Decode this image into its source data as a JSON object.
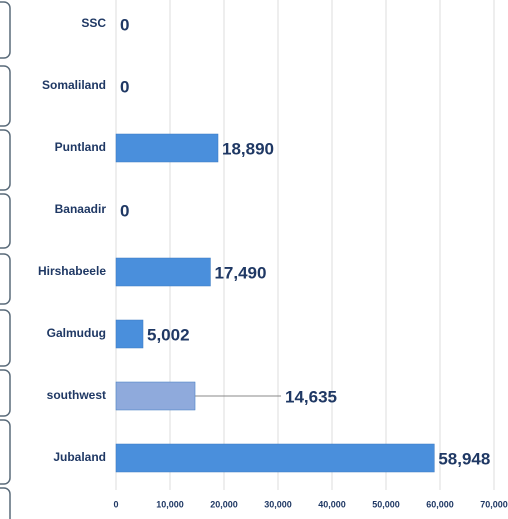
{
  "chart_data": {
    "type": "bar",
    "orientation": "horizontal",
    "categories": [
      "SSC",
      "Somaliland",
      "Puntland",
      "Banaadir",
      "Hirshabeele",
      "Galmudug",
      "southwest",
      "Jubaland"
    ],
    "values": [
      0,
      0,
      18890,
      0,
      17490,
      5002,
      14635,
      58948
    ],
    "value_labels": [
      "0",
      "0",
      "18,890",
      "0",
      "17,490",
      "5,002",
      "14,635",
      "58,948"
    ],
    "colors": [
      "#4a8fdc",
      "#4a8fdc",
      "#4a8fdc",
      "#4a8fdc",
      "#4a8fdc",
      "#4a8fdc",
      "#8faadc",
      "#4a8fdc"
    ],
    "xlim": [
      0,
      70000
    ],
    "xticks": [
      0,
      {
        "value": 10000,
        "label": "10,000"
      },
      {
        "value": 20000,
        "label": "20,000"
      },
      {
        "value": 30000,
        "label": "30,000"
      },
      {
        "value": 40000,
        "label": "40,000"
      },
      {
        "value": 50000,
        "label": "50,000"
      },
      {
        "value": 60000,
        "label": "60,000"
      },
      {
        "value": 70000,
        "label": "70,000"
      }
    ],
    "grid": true
  }
}
